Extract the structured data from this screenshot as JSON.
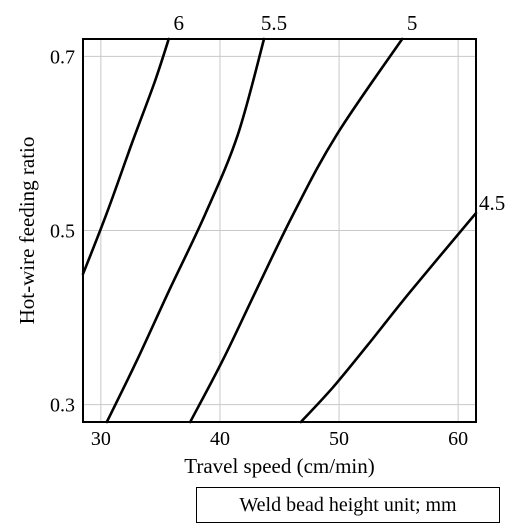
{
  "chart_data": {
    "type": "contour",
    "title": "",
    "xlabel": "Travel speed (cm/min)",
    "ylabel": "Hot-wire feeding ratio",
    "xlim": [
      28.5,
      61.5
    ],
    "ylim": [
      0.28,
      0.72
    ],
    "xticks": [
      30,
      40,
      50,
      60
    ],
    "xtick_labels": [
      "30",
      "40",
      "50",
      "60"
    ],
    "yticks": [
      0.3,
      0.5,
      0.7
    ],
    "ytick_labels": [
      "0.3",
      "0.5",
      "0.7"
    ],
    "grid": true,
    "contours": [
      {
        "label": "6",
        "label_pos": "top",
        "points": [
          [
            28.5,
            0.45
          ],
          [
            30.5,
            0.52
          ],
          [
            32.6,
            0.6
          ],
          [
            34.5,
            0.67
          ],
          [
            35.7,
            0.72
          ]
        ]
      },
      {
        "label": "5.5",
        "label_pos": "top",
        "points": [
          [
            30.5,
            0.28
          ],
          [
            33.0,
            0.35
          ],
          [
            35.7,
            0.43
          ],
          [
            38.8,
            0.52
          ],
          [
            41.5,
            0.61
          ],
          [
            43.7,
            0.72
          ]
        ]
      },
      {
        "label": "5",
        "label_pos": "top",
        "points": [
          [
            37.5,
            0.28
          ],
          [
            40.2,
            0.35
          ],
          [
            43.0,
            0.43
          ],
          [
            46.2,
            0.52
          ],
          [
            49.8,
            0.61
          ],
          [
            55.3,
            0.72
          ]
        ]
      },
      {
        "label": "4.5",
        "label_pos": "right",
        "points": [
          [
            46.8,
            0.28
          ],
          [
            49.5,
            0.32
          ],
          [
            52.5,
            0.37
          ],
          [
            56.0,
            0.43
          ],
          [
            61.5,
            0.52
          ]
        ]
      }
    ]
  },
  "note": "Weld bead height unit; mm"
}
